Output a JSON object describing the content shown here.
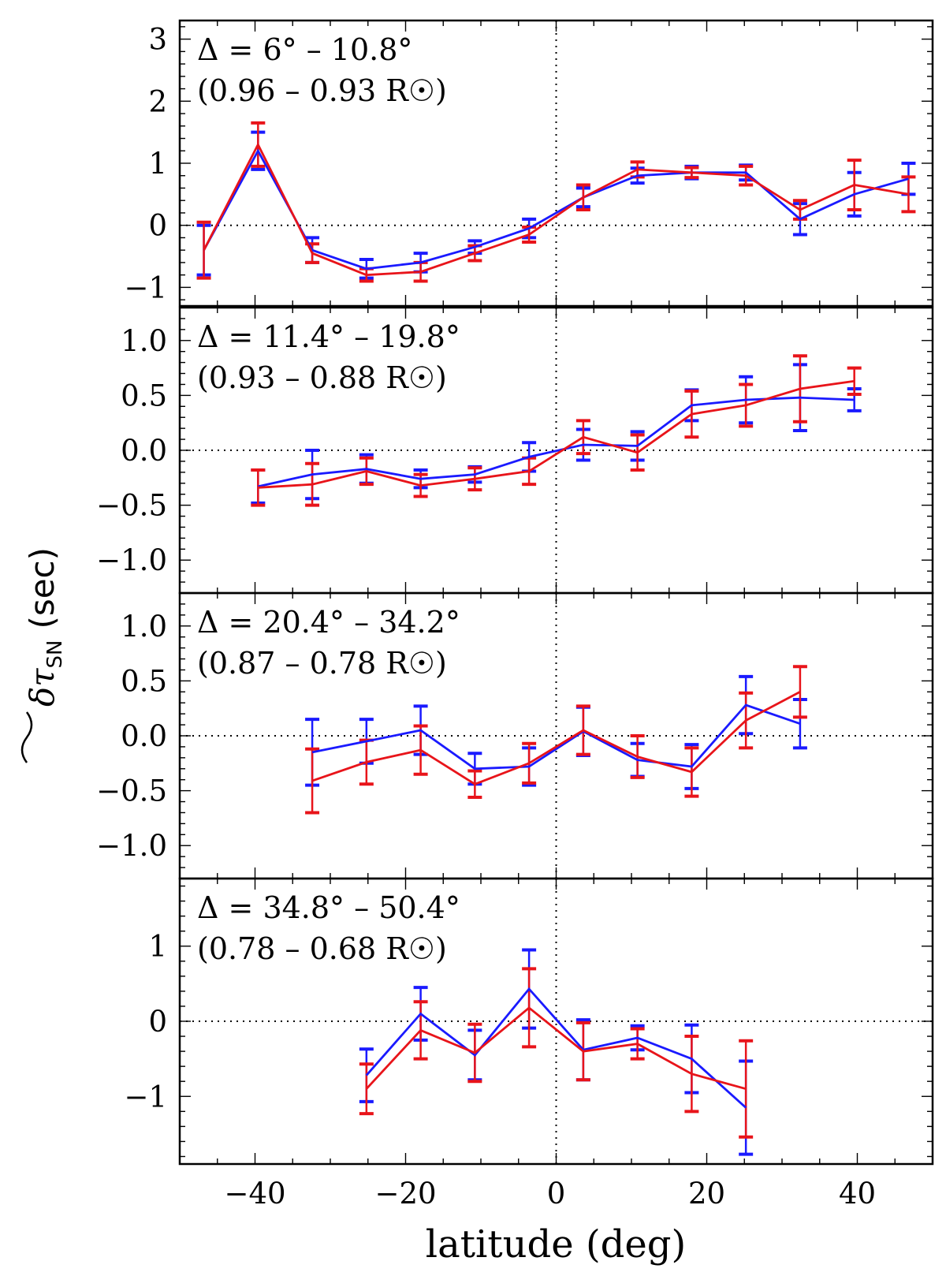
{
  "chart_data": {
    "type": "line",
    "xlabel": "latitude (deg)",
    "ylabel": "δτ_SN (sec)",
    "ylabel_parts": {
      "symbol": "δτ",
      "subscript": "SN",
      "units": "(sec)"
    },
    "xlim": [
      -50,
      50
    ],
    "xticks": [
      -40,
      -20,
      0,
      20,
      40
    ],
    "xtick_labels": [
      "−40",
      "−20",
      "0",
      "20",
      "40"
    ],
    "reference_lines": {
      "x": 0,
      "y": 0,
      "style": "dotted"
    },
    "series_colors": {
      "blue": "#1a1aff",
      "red": "#e8141a"
    },
    "panels": [
      {
        "depth_range": "Δ = 6° – 10.8°",
        "radius_range": "(0.96 – 0.93 R☉)",
        "ylim": [
          -1.3,
          3.3
        ],
        "yticks": [
          -1,
          0,
          1,
          2,
          3
        ],
        "ytick_labels": [
          "−1",
          "0",
          "1",
          "2",
          "3"
        ],
        "series": [
          {
            "name": "blue",
            "color": "#1a1aff",
            "x": [
              -46.8,
              -39.6,
              -32.4,
              -25.2,
              -18,
              -10.8,
              -3.6,
              3.6,
              10.8,
              18,
              25.2,
              32.4,
              39.6,
              46.8
            ],
            "y": [
              -0.4,
              1.2,
              -0.4,
              -0.7,
              -0.6,
              -0.35,
              -0.05,
              0.45,
              0.8,
              0.85,
              0.85,
              0.1,
              0.5,
              0.75
            ],
            "err": [
              0.4,
              0.3,
              0.2,
              0.15,
              0.15,
              0.1,
              0.15,
              0.15,
              0.12,
              0.1,
              0.12,
              0.25,
              0.35,
              0.25
            ]
          },
          {
            "name": "red",
            "color": "#e8141a",
            "x": [
              -46.8,
              -39.6,
              -32.4,
              -25.2,
              -18,
              -10.8,
              -3.6,
              3.6,
              10.8,
              18,
              25.2,
              32.4,
              39.6,
              46.8
            ],
            "y": [
              -0.4,
              1.3,
              -0.45,
              -0.8,
              -0.75,
              -0.45,
              -0.15,
              0.45,
              0.9,
              0.85,
              0.8,
              0.25,
              0.65,
              0.5
            ],
            "err": [
              0.45,
              0.35,
              0.15,
              0.1,
              0.15,
              0.12,
              0.12,
              0.2,
              0.12,
              0.08,
              0.15,
              0.15,
              0.4,
              0.28
            ]
          }
        ]
      },
      {
        "depth_range": "Δ = 11.4° – 19.8°",
        "radius_range": "(0.93 – 0.88 R☉)",
        "ylim": [
          -1.3,
          1.3
        ],
        "yticks": [
          -1.0,
          -0.5,
          0.0,
          0.5,
          1.0
        ],
        "ytick_labels": [
          "−1.0",
          "−0.5",
          "0.0",
          "0.5",
          "1.0"
        ],
        "series": [
          {
            "name": "blue",
            "color": "#1a1aff",
            "x": [
              -39.6,
              -32.4,
              -25.2,
              -18,
              -10.8,
              -3.6,
              3.6,
              10.8,
              18,
              25.2,
              32.4,
              39.6
            ],
            "y": [
              -0.33,
              -0.22,
              -0.17,
              -0.26,
              -0.22,
              -0.06,
              0.05,
              0.04,
              0.41,
              0.46,
              0.48,
              0.46
            ],
            "err": [
              0.15,
              0.22,
              0.13,
              0.08,
              0.07,
              0.13,
              0.14,
              0.13,
              0.14,
              0.21,
              0.3,
              0.1
            ]
          },
          {
            "name": "red",
            "color": "#e8141a",
            "x": [
              -39.6,
              -32.4,
              -25.2,
              -18,
              -10.8,
              -3.6,
              3.6,
              10.8,
              18,
              25.2,
              32.4,
              39.6
            ],
            "y": [
              -0.34,
              -0.31,
              -0.19,
              -0.32,
              -0.26,
              -0.19,
              0.12,
              -0.02,
              0.33,
              0.41,
              0.56,
              0.63
            ],
            "err": [
              0.16,
              0.19,
              0.12,
              0.1,
              0.1,
              0.12,
              0.15,
              0.16,
              0.21,
              0.19,
              0.3,
              0.12
            ]
          }
        ]
      },
      {
        "depth_range": "Δ = 20.4° – 34.2°",
        "radius_range": "(0.87 – 0.78 R☉)",
        "ylim": [
          -1.3,
          1.3
        ],
        "yticks": [
          -1.0,
          -0.5,
          0.0,
          0.5,
          1.0
        ],
        "ytick_labels": [
          "−1.0",
          "−0.5",
          "0.0",
          "0.5",
          "1.0"
        ],
        "series": [
          {
            "name": "blue",
            "color": "#1a1aff",
            "x": [
              -32.4,
              -25.2,
              -18,
              -10.8,
              -3.6,
              3.6,
              10.8,
              18,
              25.2,
              32.4
            ],
            "y": [
              -0.15,
              -0.05,
              0.05,
              -0.3,
              -0.28,
              0.04,
              -0.22,
              -0.28,
              0.28,
              0.11
            ],
            "err": [
              0.3,
              0.2,
              0.22,
              0.14,
              0.17,
              0.22,
              0.15,
              0.2,
              0.26,
              0.22
            ]
          },
          {
            "name": "red",
            "color": "#e8141a",
            "x": [
              -32.4,
              -25.2,
              -18,
              -10.8,
              -3.6,
              3.6,
              10.8,
              18,
              25.2,
              32.4
            ],
            "y": [
              -0.41,
              -0.24,
              -0.13,
              -0.44,
              -0.25,
              0.05,
              -0.19,
              -0.33,
              0.14,
              0.4
            ],
            "err": [
              0.29,
              0.2,
              0.22,
              0.12,
              0.18,
              0.22,
              0.19,
              0.22,
              0.25,
              0.23
            ]
          }
        ]
      },
      {
        "depth_range": "Δ = 34.8° – 50.4°",
        "radius_range": "(0.78 – 0.68 R☉)",
        "ylim": [
          -1.9,
          1.9
        ],
        "yticks": [
          -1,
          0,
          1
        ],
        "ytick_labels": [
          "−1",
          "0",
          "1"
        ],
        "series": [
          {
            "name": "blue",
            "color": "#1a1aff",
            "x": [
              -25.2,
              -18,
              -10.8,
              -3.6,
              3.6,
              10.8,
              18,
              25.2
            ],
            "y": [
              -0.72,
              0.1,
              -0.45,
              0.43,
              -0.38,
              -0.22,
              -0.5,
              -1.15
            ],
            "err": [
              0.35,
              0.35,
              0.33,
              0.52,
              0.4,
              0.16,
              0.45,
              0.62
            ]
          },
          {
            "name": "red",
            "color": "#e8141a",
            "x": [
              -25.2,
              -18,
              -10.8,
              -3.6,
              3.6,
              10.8,
              18,
              25.2
            ],
            "y": [
              -0.9,
              -0.12,
              -0.42,
              0.18,
              -0.4,
              -0.3,
              -0.7,
              -0.9
            ],
            "err": [
              0.33,
              0.38,
              0.38,
              0.52,
              0.38,
              0.2,
              0.5,
              0.64
            ]
          }
        ]
      }
    ]
  }
}
